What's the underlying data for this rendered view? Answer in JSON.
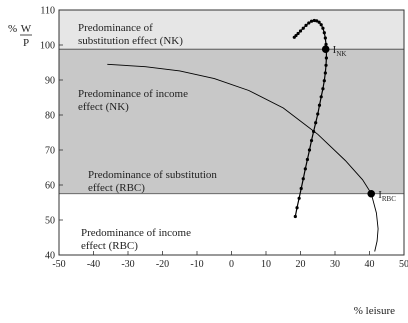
{
  "chart_data": {
    "type": "line",
    "title": "",
    "xlabel": "% leisure",
    "ylabel": "% W/P",
    "ylabel_parts": {
      "prefix": "% ",
      "numerator": "W",
      "denominator": "P"
    },
    "xlim": [
      -50,
      50
    ],
    "ylim": [
      40,
      110
    ],
    "xticks": [
      -50,
      -40,
      -30,
      -20,
      -10,
      0,
      10,
      20,
      30,
      40,
      50
    ],
    "yticks": [
      40,
      50,
      60,
      70,
      80,
      90,
      100,
      110
    ],
    "grid": false,
    "legend": "none",
    "bands": [
      {
        "name": "nk-substitution",
        "y_from": 98.8,
        "y_to": 110,
        "color": "#e6e6e6"
      },
      {
        "name": "nk-income-rbc-substitution",
        "y_from": 57.5,
        "y_to": 98.8,
        "color": "#c8c8c8"
      },
      {
        "name": "rbc-income",
        "y_from": 40,
        "y_to": 57.5,
        "color": "#ffffff"
      }
    ],
    "boundary_lines_y": [
      98.8,
      57.5
    ],
    "regions": [
      {
        "lines": [
          "Predominance of",
          "substitution effect (NK)"
        ]
      },
      {
        "lines": [
          "Predominance of income",
          "effect (NK)"
        ]
      },
      {
        "lines": [
          "Predominance of substitution",
          "effect (RBC)"
        ]
      },
      {
        "lines": [
          "Predominance of income",
          "effect (RBC)"
        ]
      }
    ],
    "series": [
      {
        "type": "line",
        "color": "#000000",
        "points": [
          [
            -36,
            94.5
          ],
          [
            -25,
            93.8
          ],
          [
            -15,
            92.6
          ],
          [
            -5,
            90.4
          ],
          [
            5,
            87.0
          ],
          [
            15,
            82.0
          ],
          [
            25,
            74.5
          ],
          [
            33,
            67.0
          ],
          [
            38,
            61.5
          ],
          [
            40.5,
            57.6
          ],
          [
            42,
            52.0
          ],
          [
            42.5,
            47.5
          ],
          [
            42.2,
            44.0
          ],
          [
            41.5,
            41.0
          ]
        ]
      },
      {
        "type": "line-markers",
        "color": "#000000",
        "points": [
          [
            18.5,
            51.0
          ],
          [
            19.0,
            53.5
          ],
          [
            19.6,
            56.2
          ],
          [
            20.2,
            59.0
          ],
          [
            20.8,
            61.8
          ],
          [
            21.4,
            64.6
          ],
          [
            22.0,
            67.3
          ],
          [
            22.6,
            70.0
          ],
          [
            23.2,
            72.7
          ],
          [
            23.8,
            75.3
          ],
          [
            24.4,
            77.8
          ],
          [
            25.0,
            80.3
          ],
          [
            25.5,
            82.8
          ],
          [
            26.0,
            85.2
          ],
          [
            26.5,
            87.5
          ],
          [
            26.9,
            89.8
          ],
          [
            27.2,
            92.0
          ],
          [
            27.4,
            94.2
          ],
          [
            27.5,
            96.3
          ],
          [
            27.5,
            98.3
          ],
          [
            27.4,
            100.2
          ],
          [
            27.2,
            102.0
          ],
          [
            26.9,
            103.5
          ],
          [
            26.5,
            104.8
          ],
          [
            26.0,
            105.8
          ],
          [
            25.4,
            106.5
          ],
          [
            24.7,
            106.9
          ],
          [
            24.0,
            107.0
          ],
          [
            23.2,
            106.8
          ],
          [
            22.4,
            106.3
          ],
          [
            21.6,
            105.6
          ],
          [
            20.8,
            104.8
          ],
          [
            20.0,
            104.0
          ],
          [
            19.3,
            103.3
          ],
          [
            18.7,
            102.7
          ],
          [
            18.2,
            102.2
          ]
        ]
      }
    ],
    "highlight_points": [
      {
        "label": "I",
        "sub": "NK",
        "x": 27.3,
        "y": 98.8
      },
      {
        "label": "I",
        "sub": "RBC",
        "x": 40.5,
        "y": 57.5
      }
    ]
  }
}
